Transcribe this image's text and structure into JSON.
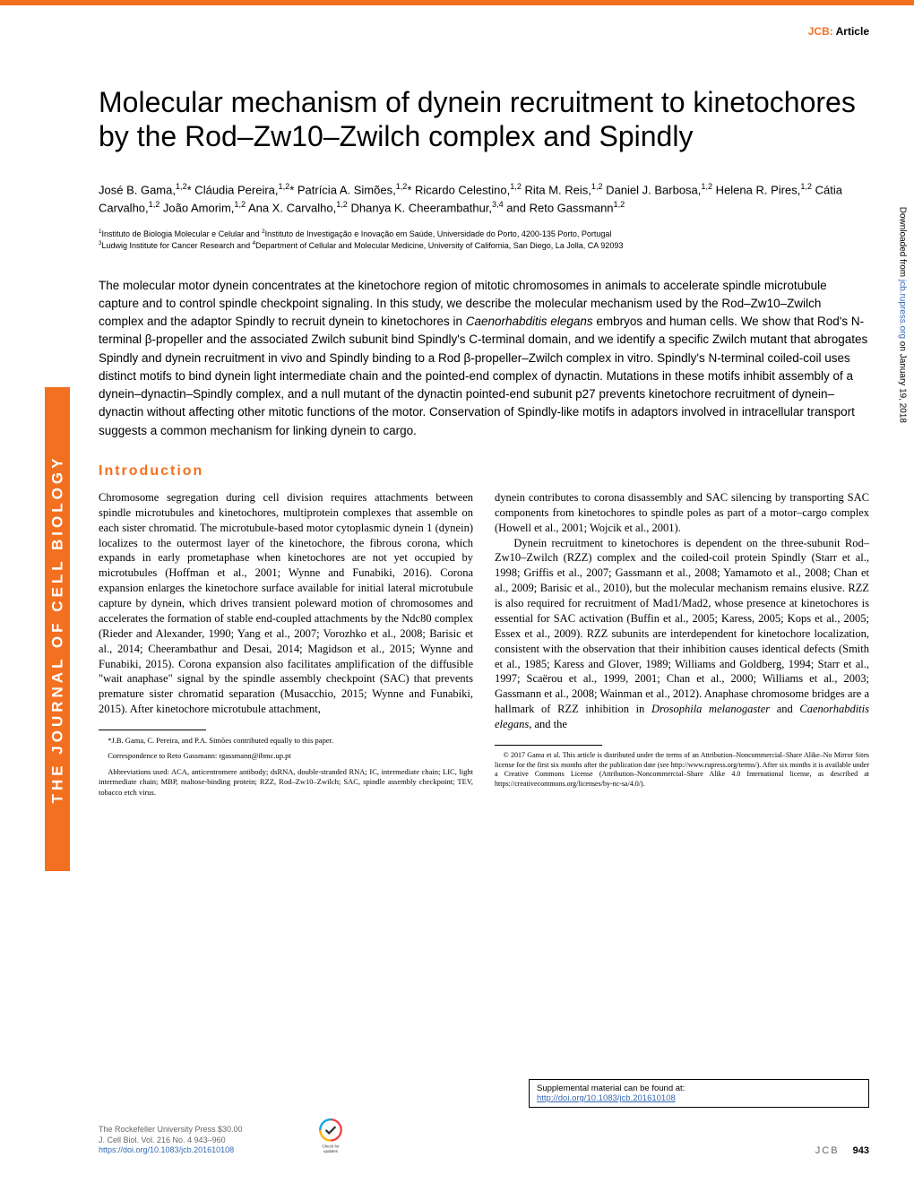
{
  "colors": {
    "accent": "#f37021",
    "link": "#3668b5",
    "text": "#000000",
    "muted": "#666666",
    "background": "#ffffff"
  },
  "header": {
    "journal_abbrev": "JCB:",
    "article_type": "Article"
  },
  "title": "Molecular mechanism of dynein recruitment to kinetochores by the Rod–Zw10–Zwilch complex and Spindly",
  "authors_html": "José B. Gama,<sup>1,2</sup>* Cláudia Pereira,<sup>1,2</sup>* Patrícia A. Simões,<sup>1,2</sup>* Ricardo Celestino,<sup>1,2</sup> Rita M. Reis,<sup>1,2</sup> Daniel J. Barbosa,<sup>1,2</sup> Helena R. Pires,<sup>1,2</sup> Cátia Carvalho,<sup>1,2</sup> João Amorim,<sup>1,2</sup> Ana X. Carvalho,<sup>1,2</sup> Dhanya K. Cheerambathur,<sup>3,4</sup> and Reto Gassmann<sup>1,2</sup>",
  "affiliations_html": "<sup>1</sup>Instituto de Biologia Molecular e Celular and <sup>2</sup>Instituto de Investigação e Inovação em Saúde, Universidade do Porto, 4200-135 Porto, Portugal<br><sup>3</sup>Ludwig Institute for Cancer Research and <sup>4</sup>Department of Cellular and Molecular Medicine, University of California, San Diego, La Jolla, CA 92093",
  "abstract_html": "The molecular motor dynein concentrates at the kinetochore region of mitotic chromosomes in animals to accelerate spindle microtubule capture and to control spindle checkpoint signaling. In this study, we describe the molecular mechanism used by the Rod–Zw10–Zwilch complex and the adaptor Spindly to recruit dynein to kinetochores in <i>Caenorhabditis elegans</i> embryos and human cells. We show that Rod's N-terminal β-propeller and the associated Zwilch subunit bind Spindly's C-terminal domain, and we identify a specific Zwilch mutant that abrogates Spindly and dynein recruitment in vivo and Spindly binding to a Rod β-propeller–Zwilch complex in vitro. Spindly's N-terminal coiled-coil uses distinct motifs to bind dynein light intermediate chain and the pointed-end complex of dynactin. Mutations in these motifs inhibit assembly of a dynein–dynactin–Spindly complex, and a null mutant of the dynactin pointed-end subunit p27 prevents kinetochore recruitment of dynein–dynactin without affecting other mitotic functions of the motor. Conservation of Spindly-like motifs in adaptors involved in intracellular transport suggests a common mechanism for linking dynein to cargo.",
  "sections": {
    "intro_heading": "Introduction",
    "intro_col1_html": "Chromosome segregation during cell division requires attachments between spindle microtubules and kinetochores, multiprotein complexes that assemble on each sister chromatid. The microtubule-based motor cytoplasmic dynein 1 (dynein) localizes to the outermost layer of the kinetochore, the fibrous corona, which expands in early prometaphase when kinetochores are not yet occupied by microtubules (Hoffman et al., 2001; Wynne and Funabiki, 2016). Corona expansion enlarges the kinetochore surface available for initial lateral microtubule capture by dynein, which drives transient poleward motion of chromosomes and accelerates the formation of stable end-coupled attachments by the Ndc80 complex (Rieder and Alexander, 1990; Yang et al., 2007; Vorozhko et al., 2008; Barisic et al., 2014; Cheerambathur and Desai, 2014; Magidson et al., 2015; Wynne and Funabiki, 2015). Corona expansion also facilitates amplification of the diffusible \"wait anaphase\" signal by the spindle assembly checkpoint (SAC) that prevents premature sister chromatid separation (Musacchio, 2015; Wynne and Funabiki, 2015). After kinetochore microtubule attachment,",
    "intro_col2_html": "dynein contributes to corona disassembly and SAC silencing by transporting SAC components from kinetochores to spindle poles as part of a motor–cargo complex (Howell et al., 2001; Wojcik et al., 2001).<br>&nbsp;&nbsp;&nbsp;&nbsp;Dynein recruitment to kinetochores is dependent on the three-subunit Rod–Zw10–Zwilch (RZZ) complex and the coiled-coil protein Spindly (Starr et al., 1998; Griffis et al., 2007; Gassmann et al., 2008; Yamamoto et al., 2008; Chan et al., 2009; Barisic et al., 2010), but the molecular mechanism remains elusive. RZZ is also required for recruitment of Mad1/Mad2, whose presence at kinetochores is essential for SAC activation (Buffin et al., 2005; Karess, 2005; Kops et al., 2005; Essex et al., 2009). RZZ subunits are interdependent for kinetochore localization, consistent with the observation that their inhibition causes identical defects (Smith et al., 1985; Karess and Glover, 1989; Williams and Goldberg, 1994; Starr et al., 1997; Scaërou et al., 1999, 2001; Chan et al., 2000; Williams et al., 2003; Gassmann et al., 2008; Wainman et al., 2012). Anaphase chromosome bridges are a hallmark of RZZ inhibition in <i>Drosophila melanogaster</i> and <i>Caenorhabditis elegans</i>, and the"
  },
  "footnotes": {
    "left": [
      "*J.B. Gama, C. Pereira, and P.A. Simões contributed equally to this paper.",
      "Correspondence to Reto Gassmann: rgassmann@ibmc.up.pt",
      "Abbreviations used: ACA, anticentromere antibody; dsRNA, double-stranded RNA; IC, intermediate chain; LIC, light intermediate chain; MBP, maltose-binding protein; RZZ, Rod–Zw10–Zwilch; SAC, spindle assembly checkpoint; TEV, tobacco etch virus."
    ],
    "right": "© 2017 Gama et al. This article is distributed under the terms of an Attribution–Noncommercial–Share Alike–No Mirror Sites license for the first six months after the publication date (see http://www.rupress.org/terms/). After six months it is available under a Creative Commons License (Attribution–Noncommercial–Share Alike 4.0 International license, as described at https://creativecommons.org/licenses/by-nc-sa/4.0/)."
  },
  "sidebar": {
    "text": "THE JOURNAL OF CELL BIOLOGY"
  },
  "download_strip": {
    "prefix": "Downloaded from ",
    "link_text": "jcb.rupress.org",
    "suffix": " on January 19, 2018"
  },
  "supplemental": {
    "label": "Supplemental material can be found at:",
    "link": "http://doi.org/10.1083/jcb.201610108"
  },
  "footer": {
    "publisher": "The Rockefeller University Press   $30.00",
    "citation": "J. Cell Biol. Vol. 216 No. 4   943–960",
    "doi": "https://doi.org/10.1083/jcb.201610108",
    "jcb_label": "JCB",
    "page_number": "943",
    "crossmark_label": "Check for updates"
  }
}
